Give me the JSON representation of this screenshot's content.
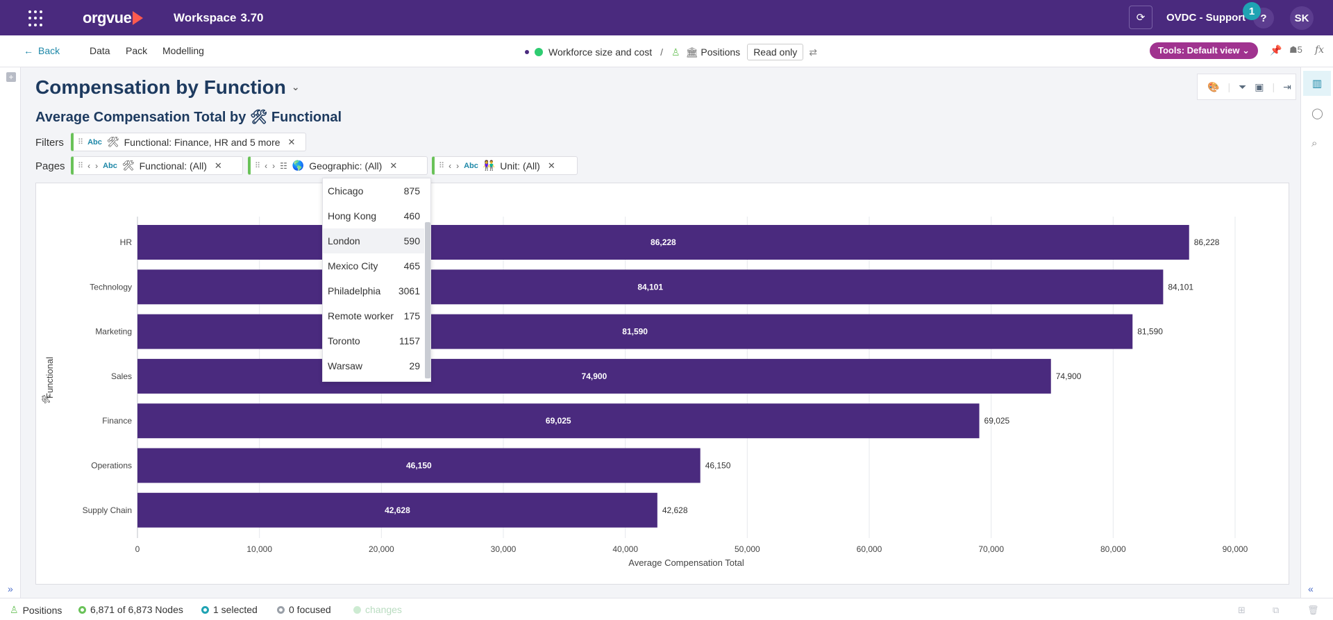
{
  "header": {
    "brand": "orgvue",
    "workspace_label": "Workspace",
    "version": "3.70",
    "org_name": "OVDC - Support",
    "notification_count": "1",
    "help_label": "?",
    "user_initials": "SK",
    "colors": {
      "bar": "#4a2a7e",
      "accent": "#ff5a4f",
      "badge": "#1fa3b3"
    }
  },
  "nav": {
    "back_label": "Back",
    "items": [
      "Data",
      "Pack",
      "Modelling"
    ],
    "breadcrumb_dataset": "Workforce size and cost",
    "breadcrumb_sep": "/",
    "breadcrumb_view": "Positions",
    "read_only_label": "Read only",
    "tools_label": "Tools: Default view",
    "users_count": "5",
    "fx_label": "fx"
  },
  "page": {
    "title": "Compensation by Function",
    "subtitle_prefix": "Average Compensation Total by",
    "subtitle_icon": "🛠",
    "subtitle_field": "Functional"
  },
  "filters": {
    "label": "Filters",
    "chips": [
      {
        "type": "Abc",
        "icon": "🛠",
        "text": "Functional: Finance, HR and 5 more"
      }
    ]
  },
  "pages": {
    "label": "Pages",
    "chips": [
      {
        "type": "Abc",
        "icon": "🛠",
        "text": "Functional: (All)"
      },
      {
        "type": "",
        "icon": "🌎",
        "text": "Geographic: (All)"
      },
      {
        "type": "Abc",
        "icon": "👫",
        "text": "Unit: (All)"
      }
    ]
  },
  "dropdown": {
    "items": [
      {
        "name": "Chicago",
        "count": "875"
      },
      {
        "name": "Hong Kong",
        "count": "460"
      },
      {
        "name": "London",
        "count": "590"
      },
      {
        "name": "Mexico City",
        "count": "465"
      },
      {
        "name": "Philadelphia",
        "count": "3061"
      },
      {
        "name": "Remote worker",
        "count": "175"
      },
      {
        "name": "Toronto",
        "count": "1157"
      },
      {
        "name": "Warsaw",
        "count": "29"
      }
    ],
    "highlighted": "London"
  },
  "chart_data": {
    "type": "bar",
    "orientation": "horizontal",
    "title": "",
    "categories": [
      "HR",
      "Technology",
      "Marketing",
      "Sales",
      "Finance",
      "Operations",
      "Supply Chain"
    ],
    "values": [
      86228,
      84101,
      81590,
      74900,
      69025,
      46150,
      42628
    ],
    "value_labels": [
      "86,228",
      "84,101",
      "81,590",
      "74,900",
      "69,025",
      "46,150",
      "42,628"
    ],
    "xlabel": "Average Compensation Total",
    "ylabel": "Functional",
    "xlim": [
      0,
      90000
    ],
    "ticks": [
      0,
      10000,
      20000,
      30000,
      40000,
      50000,
      60000,
      70000,
      80000,
      90000
    ],
    "tick_labels": [
      "0",
      "10,000",
      "20,000",
      "30,000",
      "40,000",
      "50,000",
      "60,000",
      "70,000",
      "80,000",
      "90,000"
    ],
    "grid": true,
    "bar_color": "#4a2a7e"
  },
  "status": {
    "view": "Positions",
    "nodes": "6,871 of 6,873 Nodes",
    "selected": "1 selected",
    "focused": "0 focused",
    "changes": "changes"
  }
}
